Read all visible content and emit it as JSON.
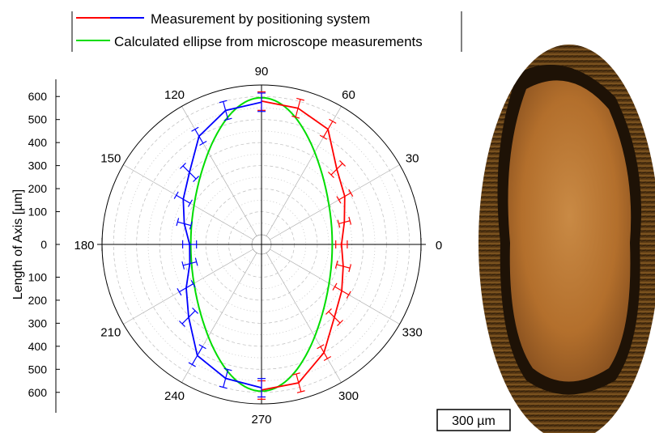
{
  "chart_data": {
    "type": "polar",
    "ylabel": "Length of Axis [µm]",
    "r_ticks": [
      "0",
      "100",
      "200",
      "300",
      "400",
      "500",
      "600"
    ],
    "angle_labels": [
      "0",
      "30",
      "60",
      "90",
      "120",
      "150",
      "180",
      "210",
      "240",
      "270",
      "300",
      "330"
    ],
    "rmax": 650,
    "grid": true,
    "legend_position": "top",
    "series": [
      {
        "name": "Measurement by positioning system",
        "colors": [
          "#ff0000",
          "#0000ff"
        ],
        "red_half": {
          "angle": [
            270,
            285,
            300,
            315,
            330,
            345,
            0,
            15,
            30,
            45,
            60,
            75,
            90
          ],
          "r": [
            590,
            580,
            500,
            405,
            360,
            325,
            305,
            330,
            375,
            420,
            535,
            570,
            580
          ],
          "err": [
            40,
            40,
            30,
            35,
            35,
            30,
            25,
            25,
            30,
            35,
            40,
            40,
            40
          ]
        },
        "blue_half": {
          "angle": [
            90,
            105,
            120,
            135,
            150,
            165,
            180,
            195,
            210,
            225,
            240,
            255,
            270
          ],
          "r": [
            575,
            560,
            500,
            400,
            350,
            305,
            270,
            280,
            335,
            405,
            515,
            560,
            580
          ],
          "err": [
            40,
            40,
            35,
            40,
            35,
            30,
            30,
            30,
            35,
            40,
            45,
            40,
            40
          ]
        }
      },
      {
        "name": "Calculated ellipse from microscope measurements",
        "color": "#00dd00",
        "semi_axis_x": 265,
        "semi_axis_y": 595
      }
    ]
  },
  "scale_bar": {
    "label": "300 µm"
  },
  "photo": {
    "description_colors": [
      "#c97a2e",
      "#7a4a1a",
      "#3a2408"
    ]
  }
}
